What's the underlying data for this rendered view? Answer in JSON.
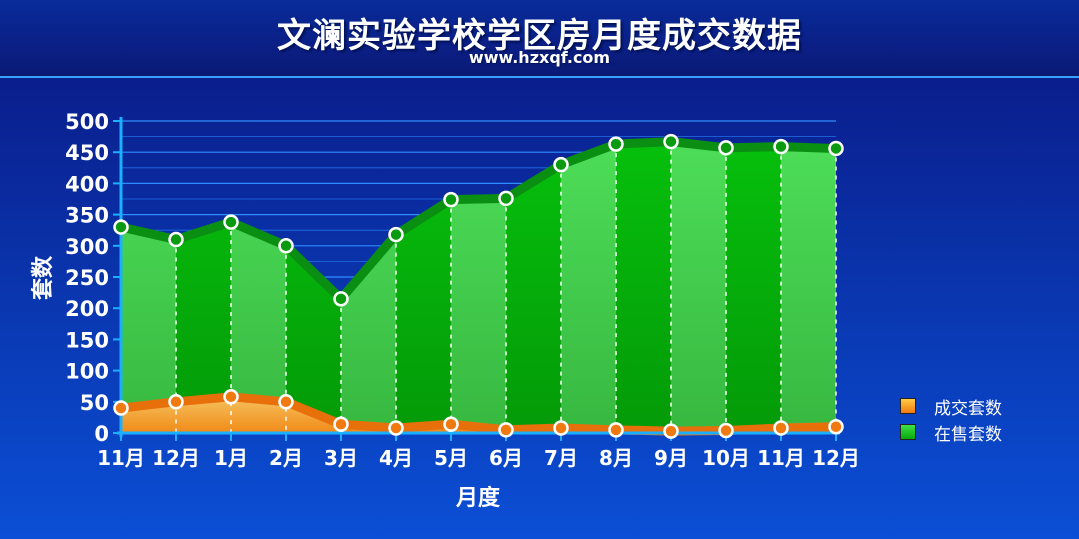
{
  "header": {
    "title": "文澜实验学校学区房月度成交数据",
    "subtitle": "www.hzxqf.com"
  },
  "colors": {
    "deal": "#f07a10",
    "sale": "#12b512",
    "deal_fill_light": "#f3b14a",
    "sale_fill_light": "#3fd84a",
    "sale_fill_dark": "#06a80a"
  },
  "chart_data": {
    "type": "area",
    "xlabel": "月度",
    "ylabel": "套数",
    "categories": [
      "11月",
      "12月",
      "1月",
      "2月",
      "3月",
      "4月",
      "5月",
      "6月",
      "7月",
      "8月",
      "9月",
      "10月",
      "11月",
      "12月"
    ],
    "ylim": [
      0,
      500
    ],
    "yticks": [
      0,
      50,
      100,
      150,
      200,
      250,
      300,
      350,
      400,
      450,
      500
    ],
    "grid": true,
    "legend": "right",
    "series": [
      {
        "name": "成交套数",
        "values": [
          40,
          50,
          58,
          50,
          14,
          8,
          14,
          5,
          8,
          5,
          3,
          4,
          8,
          10
        ]
      },
      {
        "name": "在售套数",
        "values": [
          330,
          310,
          338,
          300,
          215,
          318,
          374,
          376,
          430,
          463,
          467,
          457,
          459,
          456
        ]
      }
    ]
  }
}
